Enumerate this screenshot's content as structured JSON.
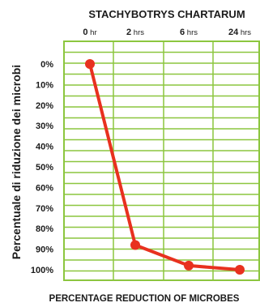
{
  "chart_data": {
    "type": "line",
    "title": "STACHYBOTRYS CHARTARUM",
    "xlabel": "PERCENTAGE REDUCTION OF MICROBES",
    "ylabel": "Percentuale di riduzione dei microbi",
    "x_ticks": [
      {
        "num": "0",
        "unit": "hr"
      },
      {
        "num": "2",
        "unit": "hrs"
      },
      {
        "num": "6",
        "unit": "hrs"
      },
      {
        "num": "24",
        "unit": "hrs"
      }
    ],
    "y_ticks": [
      "0%",
      "10%",
      "20%",
      "30%",
      "40%",
      "50%",
      "60%",
      "70%",
      "80%",
      "90%",
      "100%"
    ],
    "ylim": [
      0,
      100
    ],
    "y_inverted": true,
    "grid": true,
    "colors": {
      "grid": "#8cc63f",
      "line": "#e8311f",
      "text": "#1b1b1b"
    },
    "series": [
      {
        "values": [
          0,
          88,
          98,
          100
        ]
      }
    ]
  }
}
